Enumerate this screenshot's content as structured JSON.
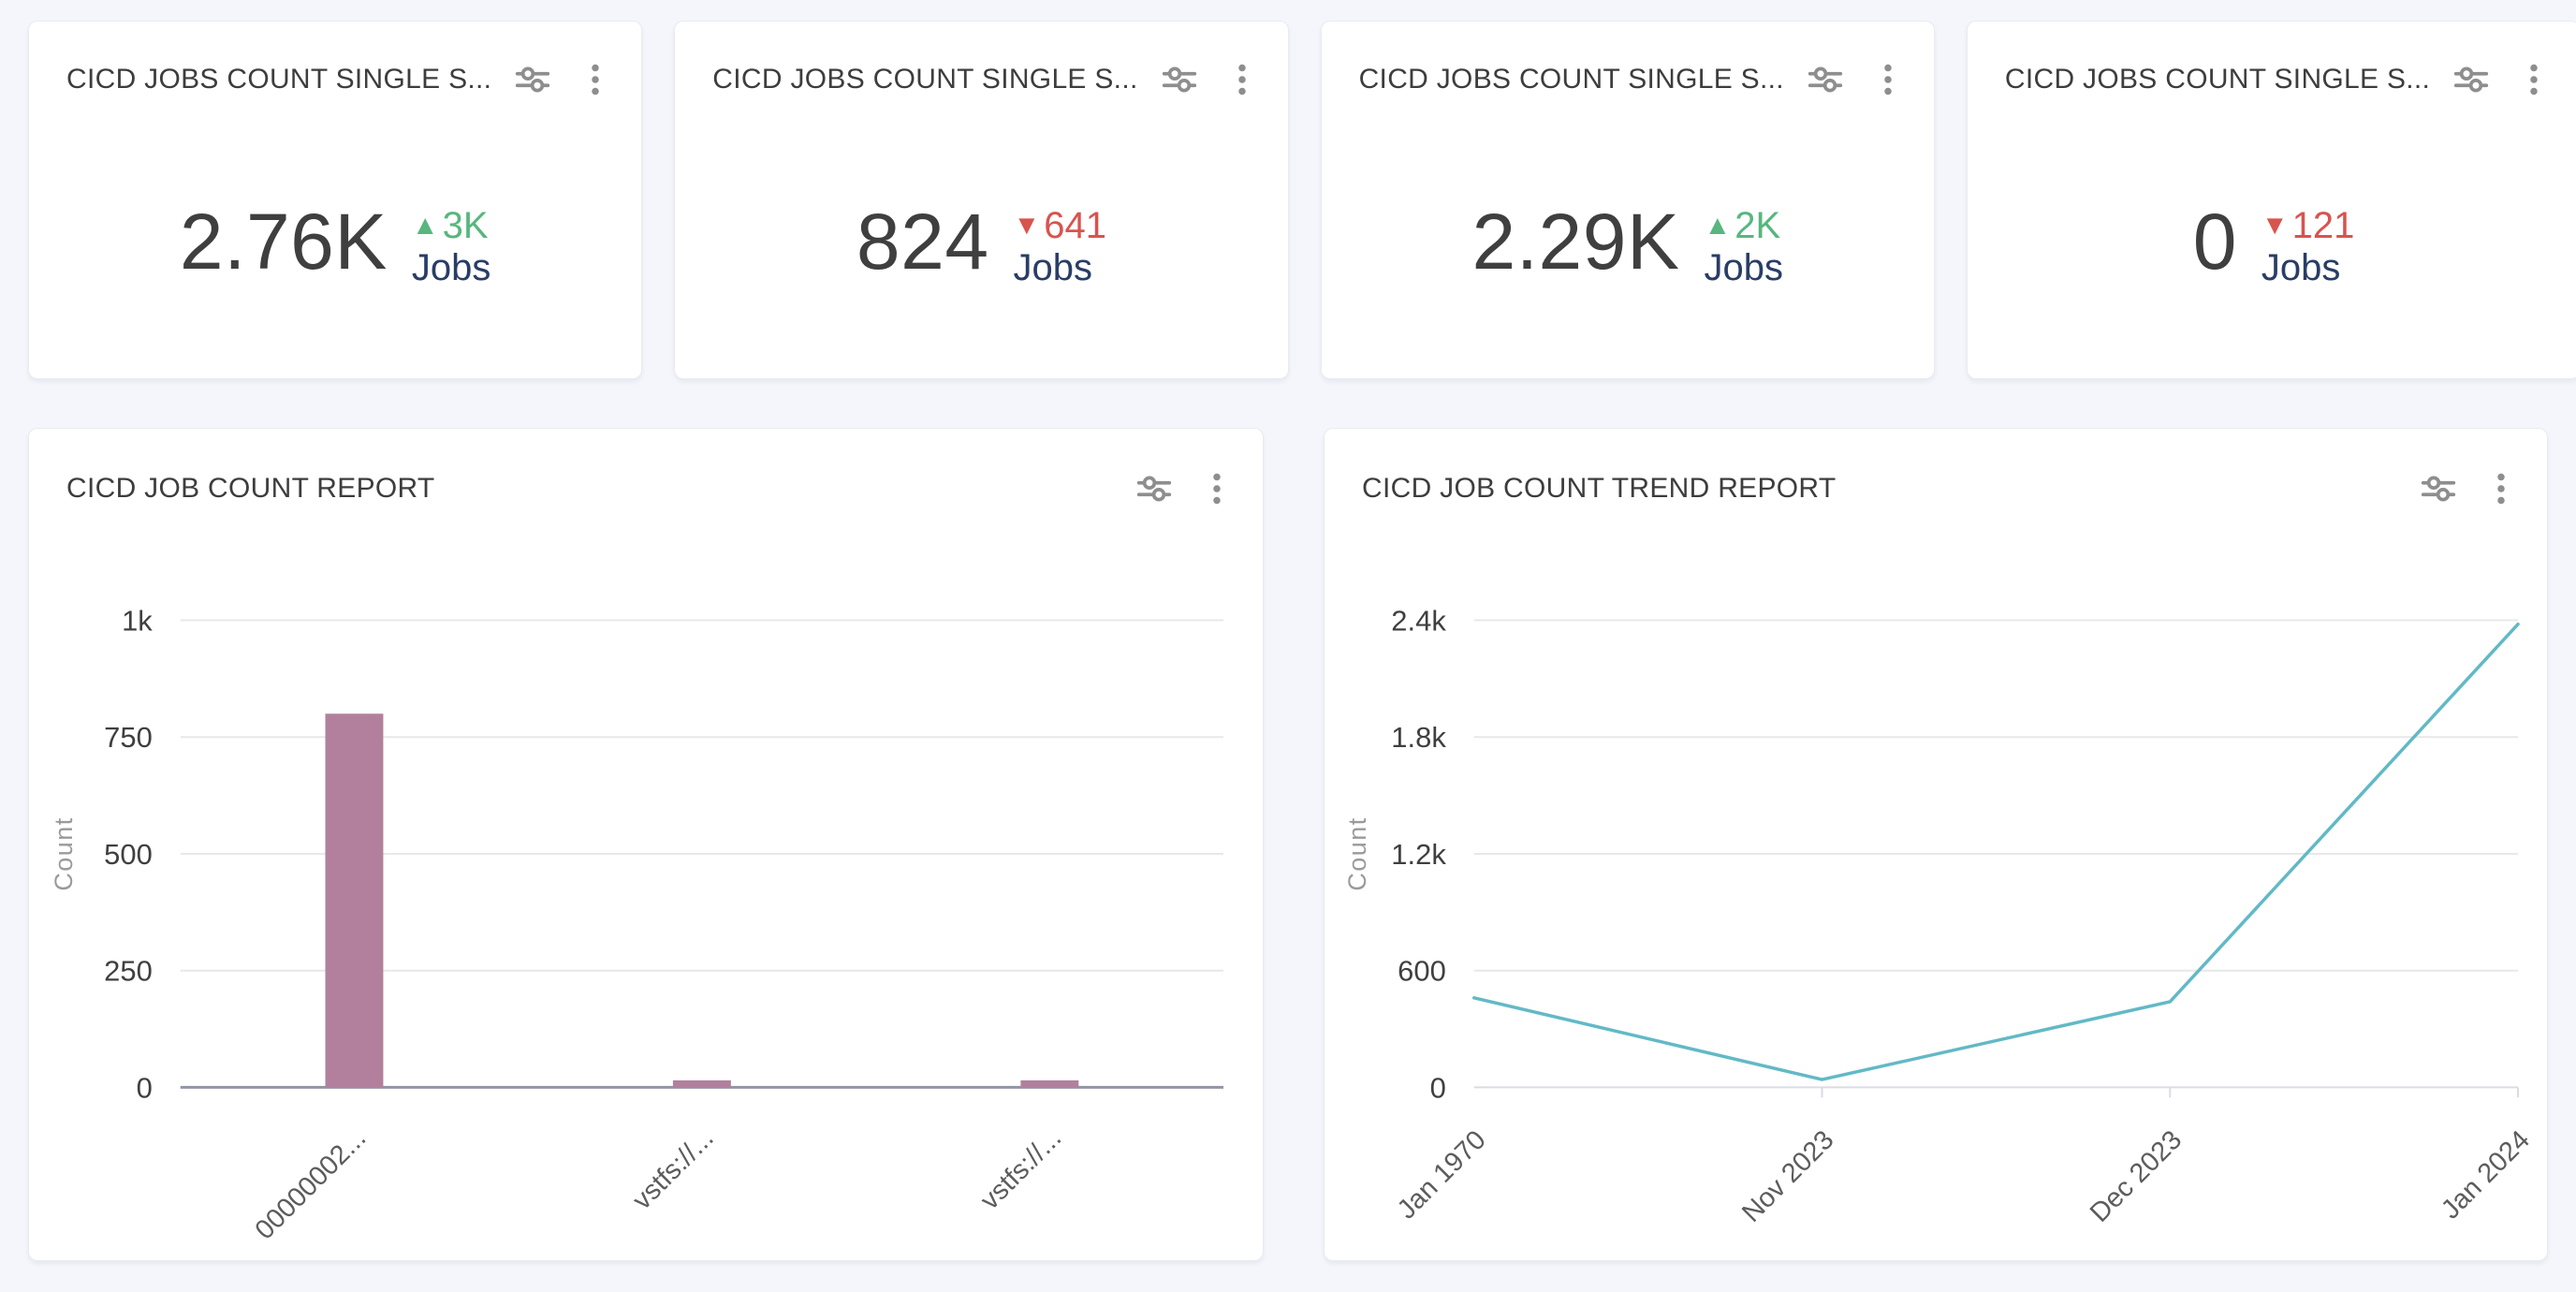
{
  "theme": {
    "page_bg": "#f4f6fb",
    "card_bg": "#ffffff",
    "title_color": "#3d3d3d",
    "icon_color": "#8e8e8e",
    "value_color": "#3f3f3f",
    "up_color": "#57b77e",
    "down_color": "#d9534f",
    "unit_color": "#293d66",
    "axis_text": "#3f3f3f",
    "axis_label": "#9a9a9a",
    "grid_color": "#e8e8e8",
    "baseline_strong": "#9196a6",
    "baseline_light": "#d9dce5",
    "x_label_color": "#5c5c5c"
  },
  "glyphs": {
    "up": "▲",
    "down": "▼"
  },
  "metric_cards": [
    {
      "title": "CICD JOBS COUNT SINGLE S...",
      "value": "2.76K",
      "delta": "3K",
      "direction": "up",
      "unit": "Jobs"
    },
    {
      "title": "CICD JOBS COUNT SINGLE S...",
      "value": "824",
      "delta": "641",
      "direction": "down",
      "unit": "Jobs"
    },
    {
      "title": "CICD JOBS COUNT SINGLE S...",
      "value": "2.29K",
      "delta": "2K",
      "direction": "up",
      "unit": "Jobs"
    },
    {
      "title": "CICD JOBS COUNT SINGLE S...",
      "value": "0",
      "delta": "121",
      "direction": "down",
      "unit": "Jobs"
    }
  ],
  "chart_data": [
    {
      "type": "bar",
      "title": "CICD JOB COUNT REPORT",
      "categories": [
        "00000002...",
        "vstfs://...",
        "vstfs://..."
      ],
      "values": [
        800,
        15,
        15
      ],
      "xlabel": "",
      "ylabel": "Count",
      "ylim": [
        0,
        1000
      ],
      "yticks": [
        0,
        250,
        500,
        750,
        1000
      ],
      "ytick_labels": [
        "0",
        "250",
        "500",
        "750",
        "1k"
      ],
      "grid": true,
      "legend": "none",
      "bar_color": "#b2809c"
    },
    {
      "type": "line",
      "title": "CICD JOB COUNT TREND REPORT",
      "categories": [
        "Jan 1970",
        "Nov 2023",
        "Dec 2023",
        "Jan 2024"
      ],
      "values": [
        460,
        40,
        440,
        2380
      ],
      "xlabel": "",
      "ylabel": "Count",
      "ylim": [
        0,
        2400
      ],
      "yticks": [
        0,
        600,
        1200,
        1800,
        2400
      ],
      "ytick_labels": [
        "0",
        "600",
        "1.2k",
        "1.8k",
        "2.4k"
      ],
      "grid": true,
      "legend": "none",
      "line_color": "#62b9c6"
    }
  ]
}
